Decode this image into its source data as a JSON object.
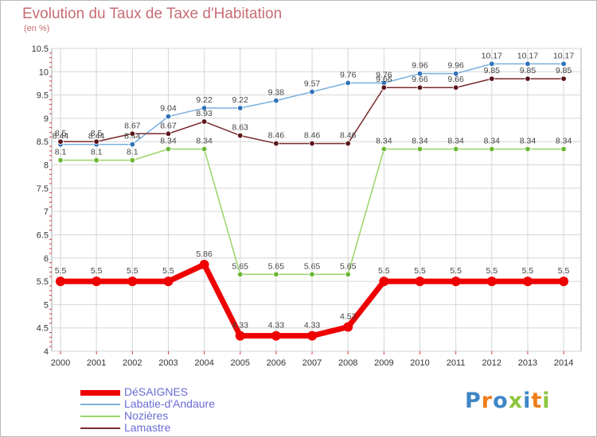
{
  "title": "Evolution du Taux de Taxe d'Habitation",
  "unit": "(en %)",
  "logo": {
    "letters": [
      "P",
      "r",
      "o",
      "x",
      "i",
      "t",
      "i"
    ],
    "colors": [
      "#3f86c6",
      "#f07d1a",
      "#3f86c6",
      "#8dc63f",
      "#3f86c6",
      "#f07d1a",
      "#8dc63f"
    ]
  },
  "chart_data": {
    "type": "line",
    "x": [
      "2000",
      "2001",
      "2002",
      "2003",
      "2004",
      "2005",
      "2006",
      "2007",
      "2008",
      "2009",
      "2010",
      "2011",
      "2012",
      "2013",
      "2014"
    ],
    "ylim": [
      4,
      10.5
    ],
    "yticks": [
      "4",
      "4.5",
      "5",
      "5.5",
      "6",
      "6.5",
      "7",
      "7.5",
      "8",
      "8.5",
      "9",
      "9.5",
      "10",
      "10.5"
    ],
    "grid": true,
    "legend_position": "bottom-left",
    "series": [
      {
        "name": "DéSAIGNES",
        "color": "#ee0000",
        "width": 7,
        "values": [
          5.5,
          5.5,
          5.5,
          5.5,
          5.86,
          4.33,
          4.33,
          4.33,
          4.52,
          5.5,
          5.5,
          5.5,
          5.5,
          5.5,
          5.5
        ],
        "labels": [
          "5.5",
          "5.5",
          "5.5",
          "5.5",
          "5.86",
          "4.33",
          "4.33",
          "4.33",
          "4.52",
          "5.5",
          "5.5",
          "5.5",
          "5.5",
          "5.5",
          "5.5"
        ]
      },
      {
        "name": "Labatie-d'Andaure",
        "color": "#7ab0de",
        "width": 1.5,
        "values": [
          8.44,
          8.44,
          8.44,
          9.04,
          9.22,
          9.22,
          9.38,
          9.57,
          9.76,
          9.76,
          9.96,
          9.96,
          10.17,
          10.17,
          10.17
        ],
        "labels": [
          "8.44",
          "8.44",
          "8.44",
          "9.04",
          "9.22",
          "9.22",
          "9.38",
          "9.57",
          "9.76",
          "9.76",
          "9.96",
          "9.96",
          "10.17",
          "10.17",
          "10.17"
        ]
      },
      {
        "name": "Nozières",
        "color": "#9bd46a",
        "width": 1.5,
        "values": [
          8.1,
          8.1,
          8.1,
          8.34,
          8.34,
          5.65,
          5.65,
          5.65,
          5.65,
          8.34,
          8.34,
          8.34,
          8.34,
          8.34,
          8.34
        ],
        "labels": [
          "8.1",
          "8.1",
          "8.1",
          "8.34",
          "8.34",
          "5.65",
          "5.65",
          "5.65",
          "5.65",
          "8.34",
          "8.34",
          "8.34",
          "8.34",
          "8.34",
          "8.34"
        ]
      },
      {
        "name": "Lamastre",
        "color": "#7a2a2e",
        "width": 1.5,
        "values": [
          8.5,
          8.5,
          8.67,
          8.67,
          8.93,
          8.63,
          8.46,
          8.46,
          8.46,
          9.66,
          9.66,
          9.66,
          9.85,
          9.85,
          9.85
        ],
        "labels": [
          "8.5",
          "8.5",
          "8.67",
          "8.67",
          "8.93",
          "8.63",
          "8.46",
          "8.46",
          "8.46",
          "9.66",
          "9.66",
          "9.66",
          "9.85",
          "9.85",
          "9.85"
        ]
      }
    ]
  }
}
